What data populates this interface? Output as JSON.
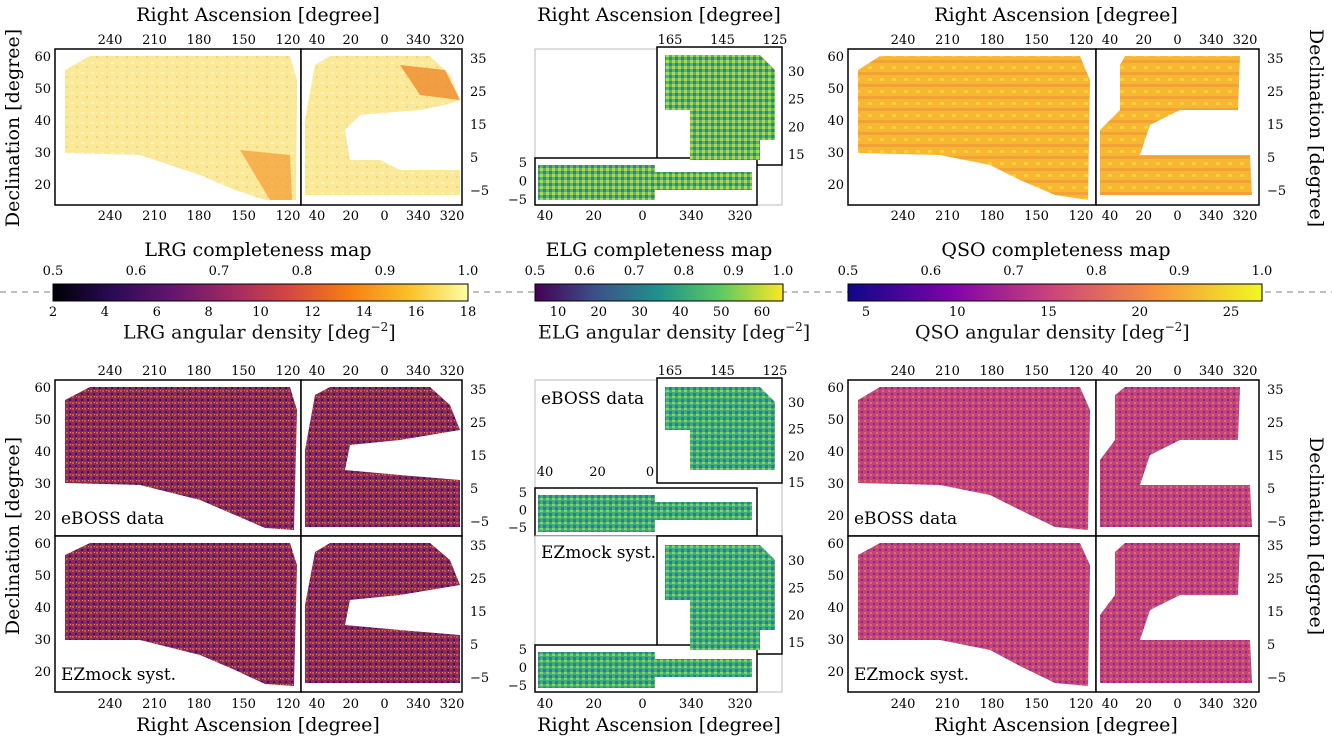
{
  "figure": {
    "ra_axis_label": "Right Ascension [degree]",
    "dec_axis_label": "Declination [degree]",
    "ngc_ra_ticks": [
      "240",
      "210",
      "180",
      "150",
      "120"
    ],
    "sgc_ra_ticks": [
      "40",
      "20",
      "0",
      "340",
      "320"
    ],
    "elg_ngc_ra_ticks": [
      "165",
      "145",
      "125"
    ],
    "ngc_dec_ticks": [
      "60",
      "50",
      "40",
      "30",
      "20"
    ],
    "sgc_dec_ticks": [
      "35",
      "25",
      "15",
      "5",
      "−5"
    ],
    "elg_ngc_dec_ticks": [
      "30",
      "25",
      "20",
      "15"
    ],
    "elg_sgc_dec_ticks": [
      "5",
      "0",
      "−5"
    ],
    "panel_labels": {
      "data": "eBOSS data",
      "mock": "EZmock syst."
    }
  },
  "colorbars": [
    {
      "id": "lrg",
      "completeness_title": "LRG completeness map",
      "density_title": "LRG angular density",
      "completeness_ticks": [
        "0.5",
        "0.6",
        "0.7",
        "0.8",
        "0.9",
        "1.0"
      ],
      "density_ticks": [
        "2",
        "4",
        "6",
        "8",
        "10",
        "12",
        "14",
        "16",
        "18"
      ],
      "colormap": "inferno"
    },
    {
      "id": "elg",
      "completeness_title": "ELG completeness map",
      "density_title": "ELG angular density",
      "completeness_ticks": [
        "0.5",
        "0.6",
        "0.7",
        "0.8",
        "0.9",
        "1.0"
      ],
      "density_ticks": [
        "10",
        "20",
        "30",
        "40",
        "50",
        "60"
      ],
      "colormap": "viridis"
    },
    {
      "id": "qso",
      "completeness_title": "QSO completeness map",
      "density_title": "QSO angular density",
      "completeness_ticks": [
        "0.5",
        "0.6",
        "0.7",
        "0.8",
        "0.9",
        "1.0"
      ],
      "density_ticks": [
        "5",
        "10",
        "15",
        "20",
        "25"
      ],
      "colormap": "plasma"
    }
  ],
  "density_unit": "[deg",
  "density_exp": "−2",
  "density_close": "]",
  "colors": {
    "inferno_low": "#000004",
    "inferno_high": "#fcffa4",
    "viridis_low": "#440154",
    "viridis_high": "#fde725",
    "plasma_low": "#0d0887",
    "plasma_high": "#f0f921"
  }
}
